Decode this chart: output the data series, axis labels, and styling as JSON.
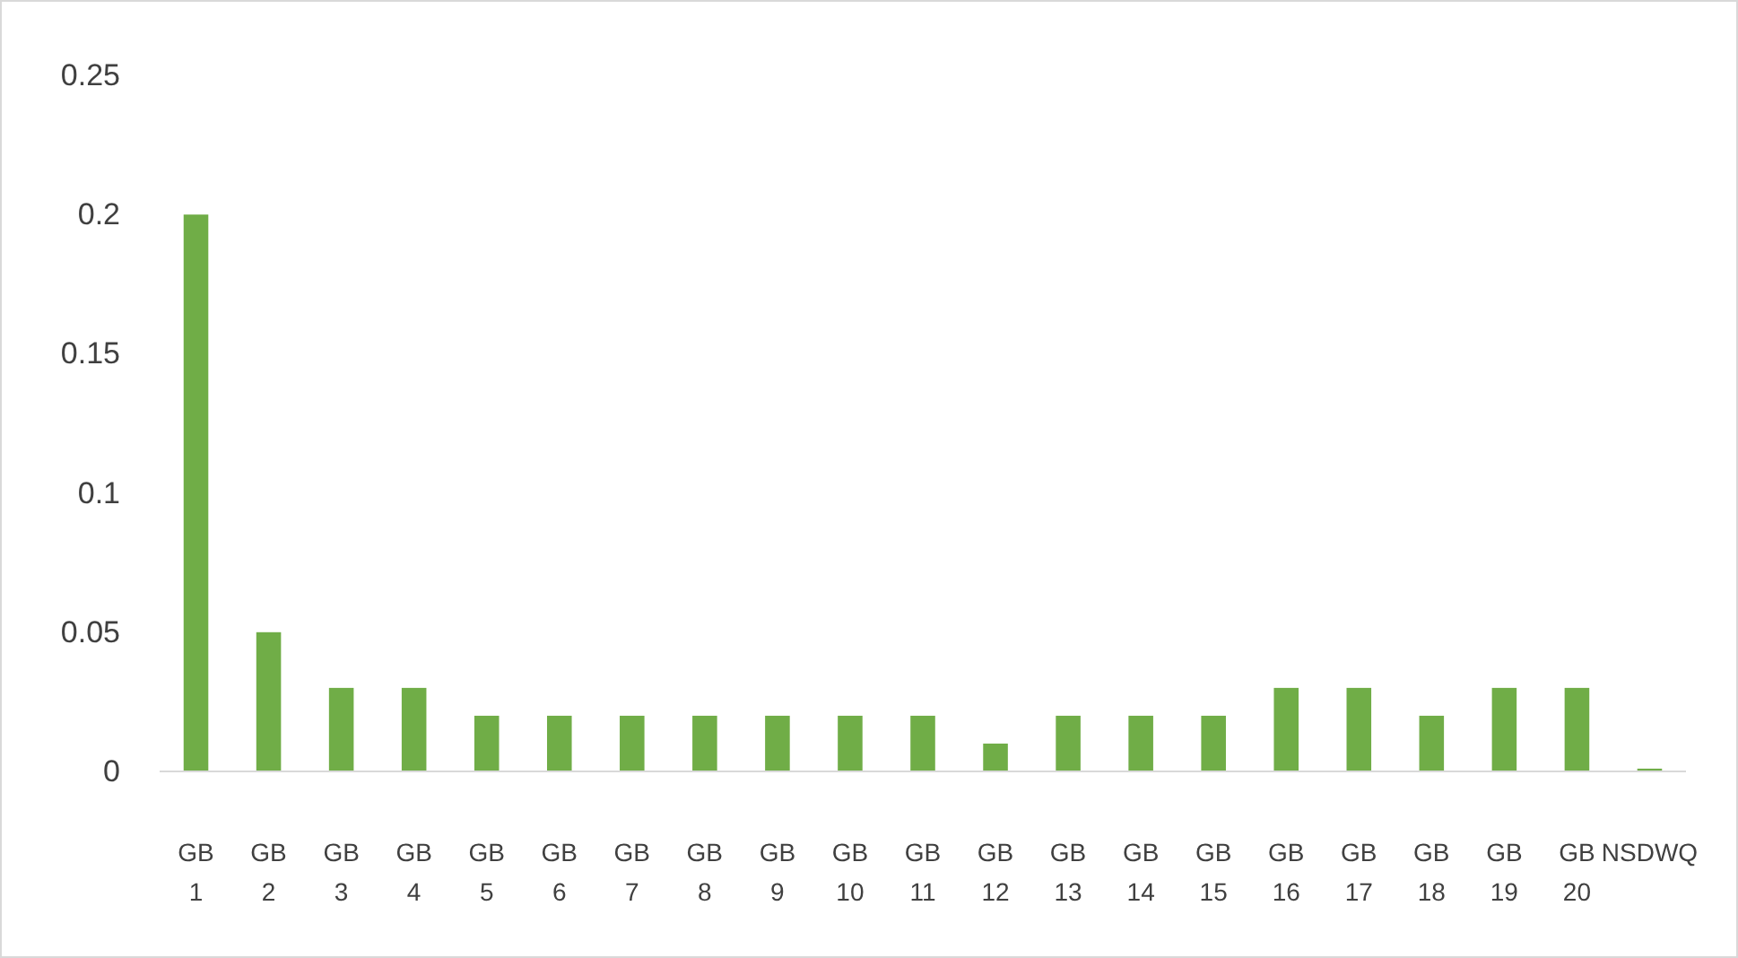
{
  "chart_data": {
    "type": "bar",
    "categories": [
      "GB 1",
      "GB 2",
      "GB 3",
      "GB 4",
      "GB 5",
      "GB 6",
      "GB 7",
      "GB 8",
      "GB 9",
      "GB 10",
      "GB 11",
      "GB 12",
      "GB 13",
      "GB 14",
      "GB 15",
      "GB 16",
      "GB 17",
      "GB 18",
      "GB 19",
      "GB 20",
      "NSDWQ"
    ],
    "values": [
      0.2,
      0.05,
      0.03,
      0.03,
      0.02,
      0.02,
      0.02,
      0.02,
      0.02,
      0.02,
      0.02,
      0.01,
      0.02,
      0.02,
      0.02,
      0.03,
      0.03,
      0.02,
      0.03,
      0.03,
      0.001
    ],
    "color": "#70ad47",
    "ylim": [
      0,
      0.25
    ],
    "yticks": [
      0,
      0.05,
      0.1,
      0.15,
      0.2,
      0.25
    ],
    "grid": false
  }
}
